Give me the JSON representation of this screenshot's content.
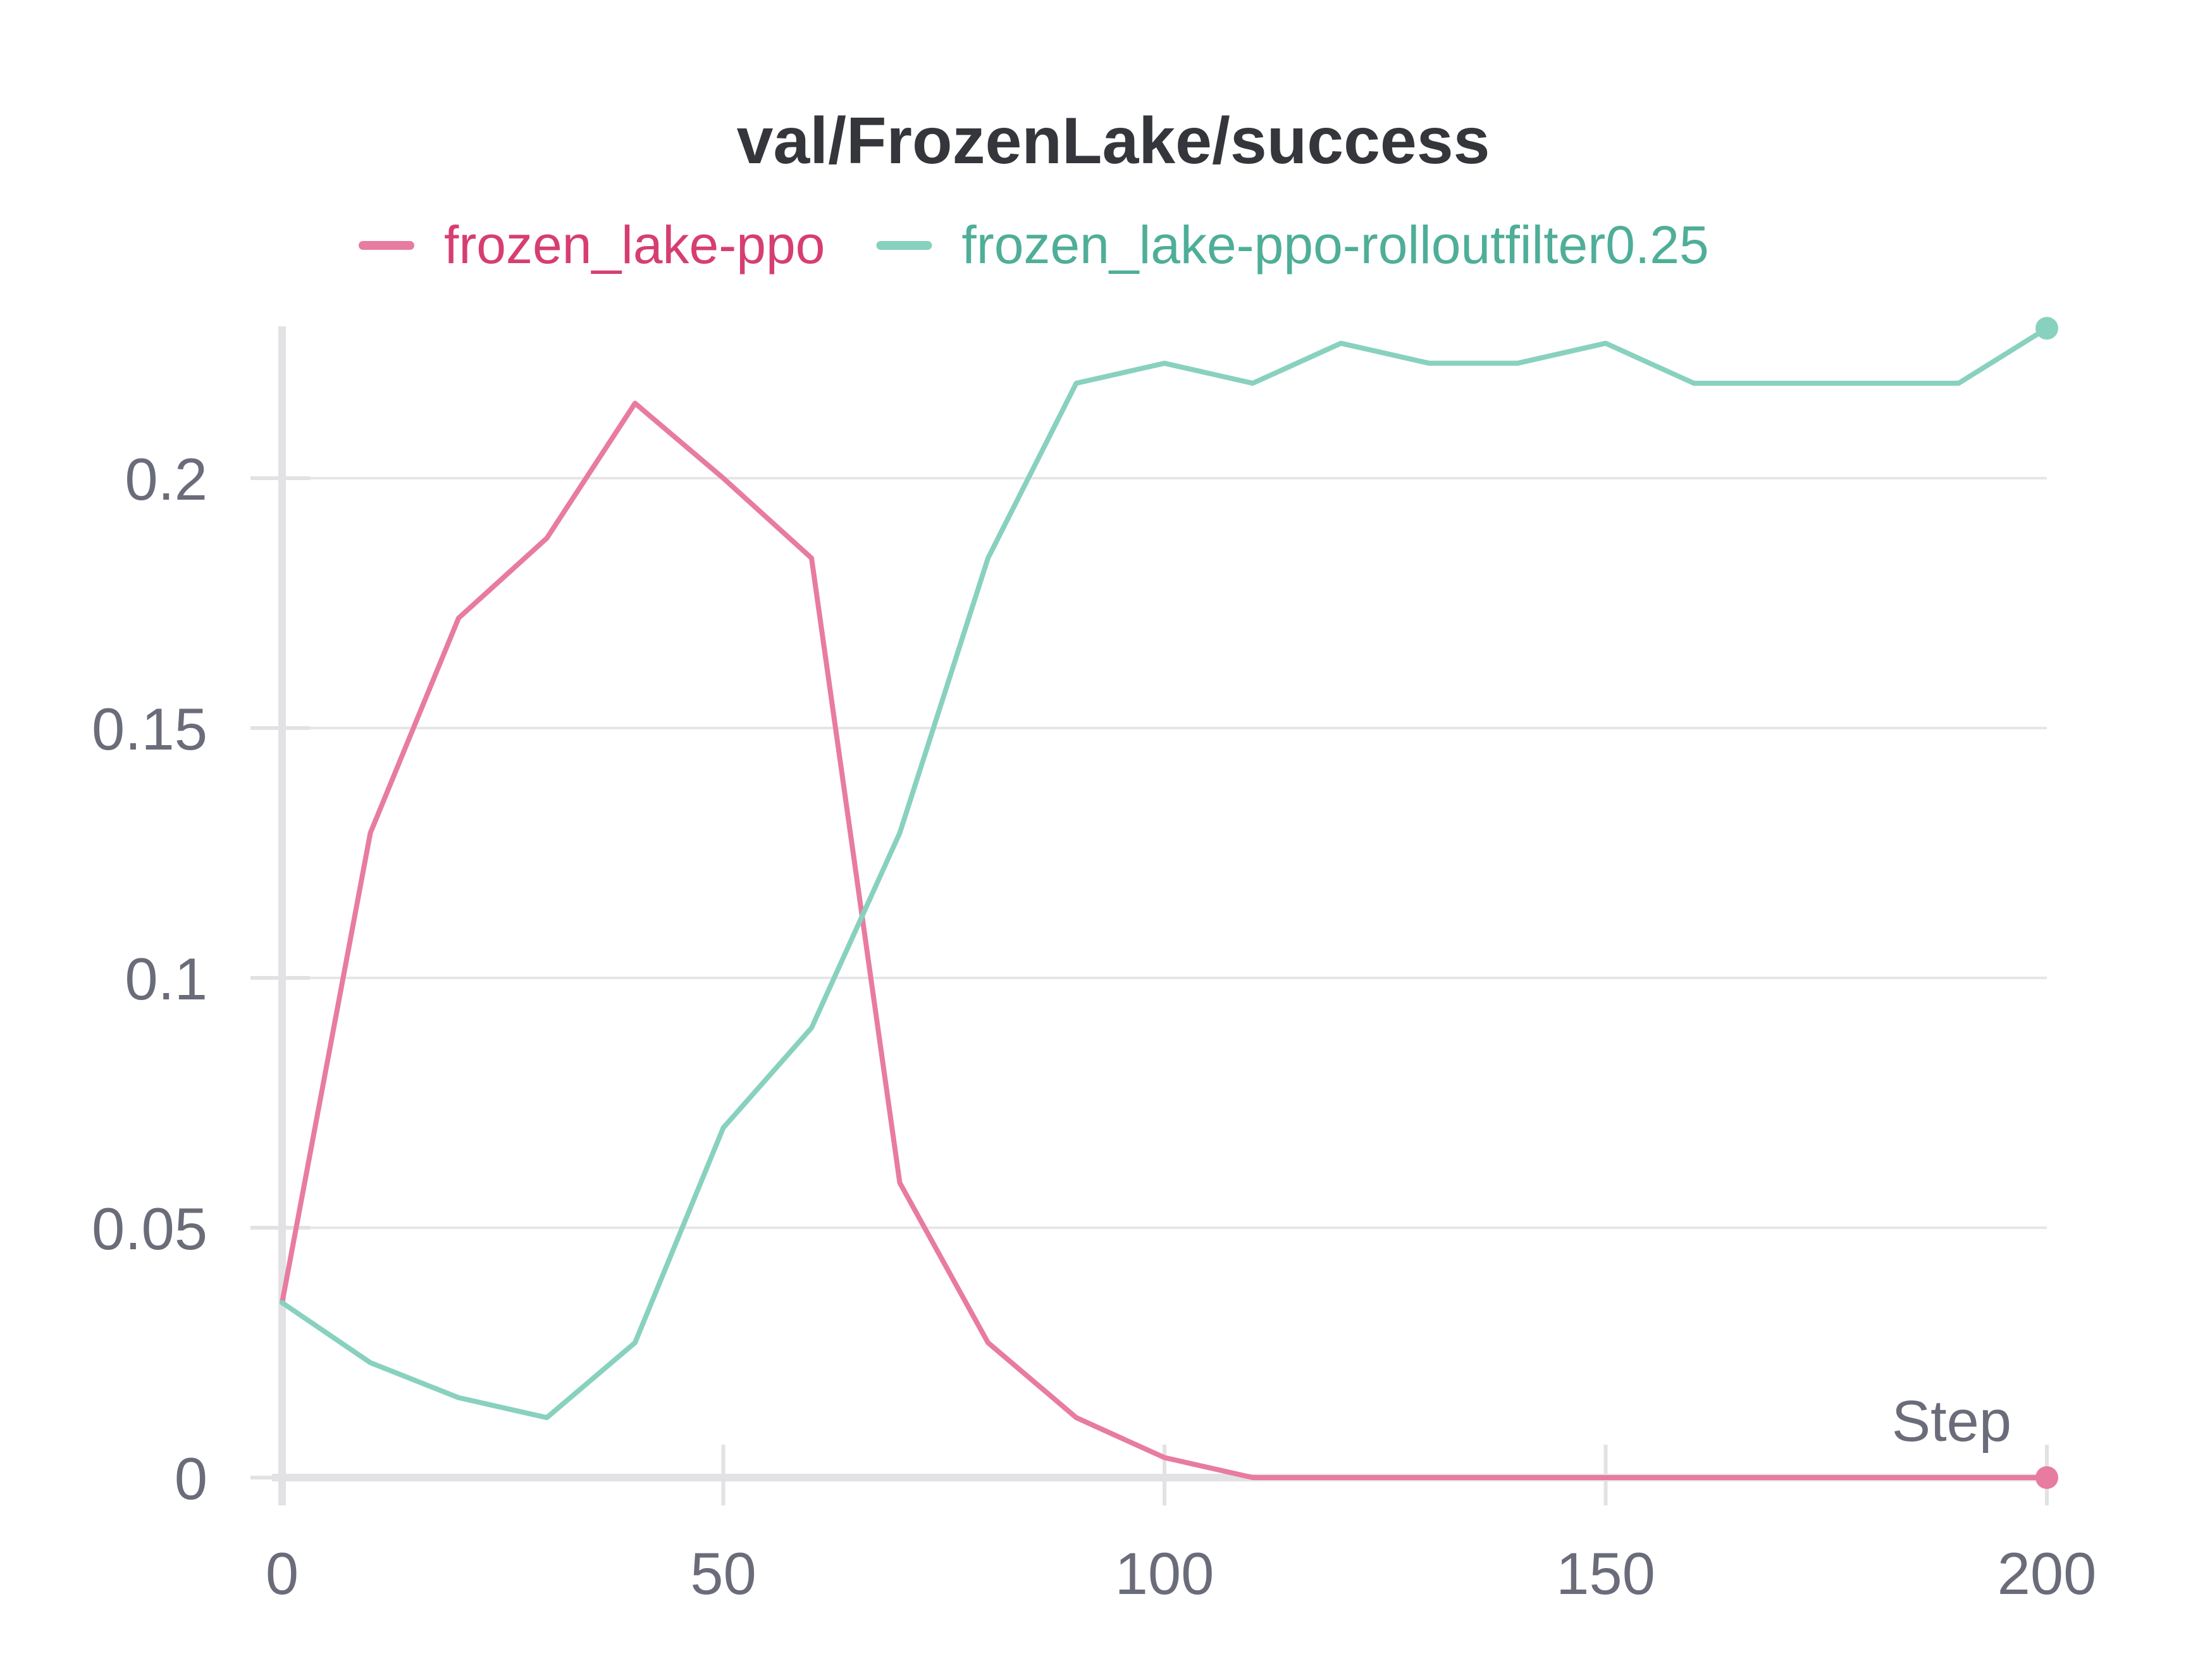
{
  "chart_data": {
    "type": "line",
    "title": "val/FrozenLake/success",
    "xlabel": "Step",
    "ylabel": "",
    "xlim": [
      0,
      200
    ],
    "ylim": [
      0,
      0.23
    ],
    "x_ticks": [
      "0",
      "50",
      "100",
      "150",
      "200"
    ],
    "y_ticks": [
      "0",
      "0.05",
      "0.1",
      "0.15",
      "0.2"
    ],
    "grid": true,
    "legend_position": "top",
    "x": [
      0,
      10,
      20,
      30,
      40,
      50,
      60,
      70,
      80,
      90,
      100,
      110,
      120,
      130,
      140,
      150,
      160,
      170,
      180,
      190,
      200
    ],
    "series": [
      {
        "name": "frozen_lake-ppo",
        "color": "#e87ba0",
        "text_color": "#d63e72",
        "values": [
          0.035,
          0.129,
          0.172,
          0.188,
          0.215,
          0.2,
          0.184,
          0.059,
          0.027,
          0.012,
          0.004,
          0.0,
          0.0,
          0.0,
          0.0,
          0.0,
          0.0,
          0.0,
          0.0,
          0.0,
          0.0
        ]
      },
      {
        "name": "frozen_lake-ppo-rolloutfilter0.25",
        "color": "#88d1bf",
        "text_color": "#4fae98",
        "values": [
          0.035,
          0.023,
          0.016,
          0.012,
          0.027,
          0.07,
          0.09,
          0.129,
          0.184,
          0.219,
          0.223,
          0.219,
          0.227,
          0.223,
          0.223,
          0.227,
          0.219,
          0.219,
          0.219,
          0.219,
          0.23
        ]
      }
    ]
  }
}
